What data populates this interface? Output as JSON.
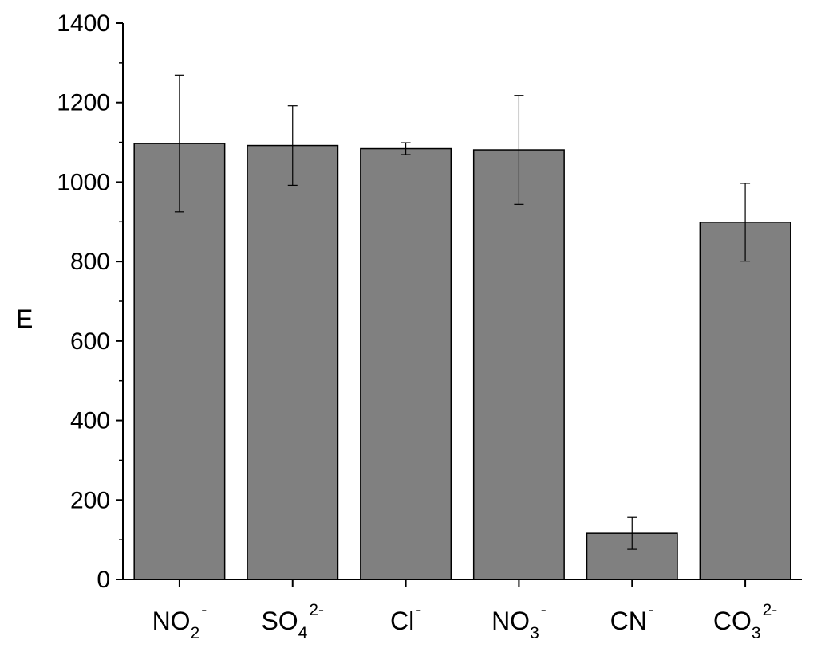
{
  "chart_data": {
    "type": "bar",
    "title": "",
    "xlabel": "",
    "ylabel": "E",
    "ylim": [
      0,
      1400
    ],
    "yticks": [
      0,
      200,
      400,
      600,
      800,
      1000,
      1200,
      1400
    ],
    "grid": false,
    "legend": "none",
    "bar_color": "#808080",
    "bar_edge_color": "#000000",
    "categories": [
      {
        "base": "NO",
        "sub": "2",
        "sup": "-"
      },
      {
        "base": "SO",
        "sub": "4",
        "sup": "2-"
      },
      {
        "base": "Cl",
        "sub": "",
        "sup": "-"
      },
      {
        "base": "NO",
        "sub": "3",
        "sup": "-"
      },
      {
        "base": "CN",
        "sub": "",
        "sup": "-"
      },
      {
        "base": "CO",
        "sub": "3",
        "sup": "2-"
      }
    ],
    "values": [
      1097,
      1092,
      1084,
      1081,
      116,
      899
    ],
    "error": [
      172,
      100,
      15,
      137,
      40,
      98
    ]
  }
}
